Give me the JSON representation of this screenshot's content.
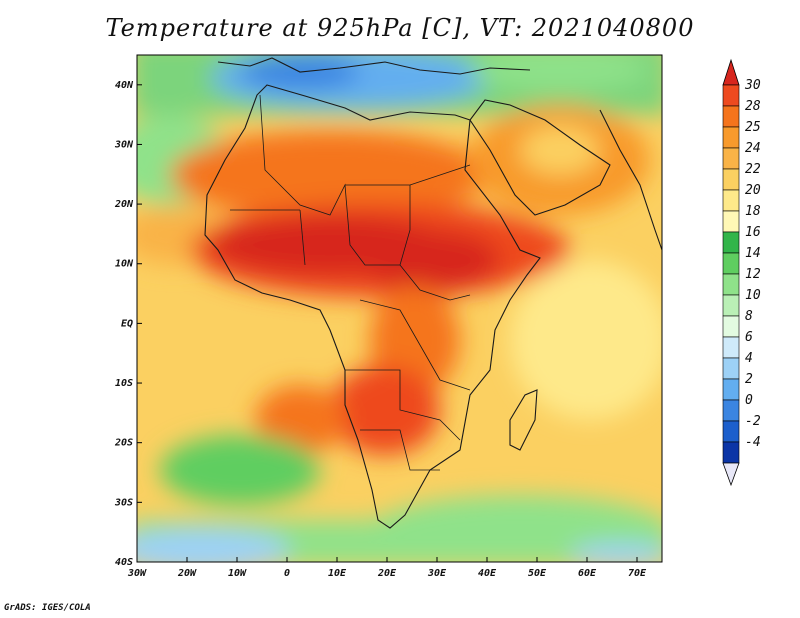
{
  "title": "Temperature at 925hPa [C], VT: 2021040800",
  "credit": "GrADS: IGES/COLA",
  "map": {
    "lon_range": [
      -30,
      75
    ],
    "lat_range": [
      -40,
      45
    ],
    "lon_ticks": [
      "30W",
      "20W",
      "10W",
      "0",
      "10E",
      "20E",
      "30E",
      "40E",
      "50E",
      "60E",
      "70E"
    ],
    "lat_ticks": [
      "40N",
      "30N",
      "20N",
      "10N",
      "EQ",
      "10S",
      "20S",
      "30S",
      "40S"
    ]
  },
  "colorbar": {
    "labels": [
      "30",
      "28",
      "25",
      "24",
      "22",
      "20",
      "18",
      "16",
      "14",
      "12",
      "10",
      "8",
      "6",
      "4",
      "2",
      "0",
      "-2",
      "-4"
    ],
    "colors": [
      "#d7261e",
      "#ee4a1f",
      "#f5741c",
      "#f89a2c",
      "#f9b347",
      "#fbd061",
      "#fee98a",
      "#fff8b6",
      "#32b54a",
      "#5fce60",
      "#8fe28a",
      "#baf0b6",
      "#e3fbe1",
      "#cfeafa",
      "#9dd1f6",
      "#63aef0",
      "#3b85e1",
      "#1c5fcc",
      "#0b35a6",
      "#07127a"
    ]
  }
}
